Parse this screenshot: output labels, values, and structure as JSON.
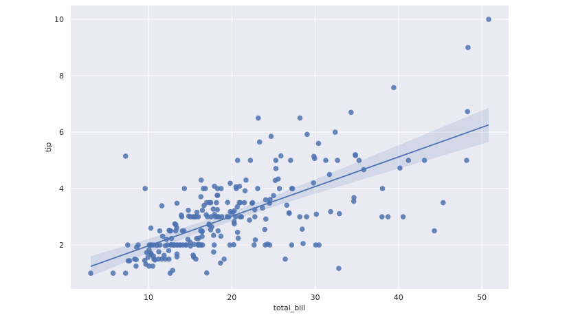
{
  "chart_data": {
    "type": "scatter",
    "title": "",
    "xlabel": "total_bill",
    "ylabel": "tip",
    "xlim": [
      0.68,
      53.2
    ],
    "ylim": [
      0.44,
      10.49
    ],
    "xticks": [
      10,
      20,
      30,
      40,
      50
    ],
    "yticks": [
      2,
      4,
      6,
      8,
      10
    ],
    "grid": true,
    "regression": {
      "fit": "linear",
      "confidence_interval": 95
    },
    "colors": {
      "background": "#eaeaf2",
      "grid": "#ffffff",
      "points": "#4c72b0",
      "line": "#4c72b0"
    },
    "x": [
      16.99,
      10.34,
      21.01,
      23.68,
      24.59,
      25.29,
      8.77,
      26.88,
      15.04,
      14.78,
      10.27,
      35.26,
      15.42,
      18.43,
      14.83,
      21.58,
      10.33,
      16.29,
      16.97,
      20.65,
      17.92,
      20.29,
      15.77,
      39.42,
      19.82,
      17.81,
      13.37,
      12.69,
      21.7,
      19.65,
      9.55,
      18.35,
      15.06,
      20.69,
      17.78,
      24.06,
      16.31,
      16.93,
      18.69,
      31.27,
      16.04,
      17.46,
      13.94,
      9.68,
      30.4,
      18.29,
      22.23,
      32.4,
      28.55,
      18.04,
      12.54,
      10.29,
      34.81,
      9.94,
      25.56,
      19.49,
      38.01,
      26.41,
      11.24,
      48.27,
      20.29,
      13.81,
      11.02,
      18.29,
      17.59,
      20.08,
      16.45,
      3.07,
      20.23,
      15.01,
      12.02,
      17.07,
      26.86,
      25.28,
      14.73,
      10.51,
      17.92,
      27.2,
      22.76,
      17.29,
      19.44,
      16.66,
      10.07,
      32.68,
      15.98,
      34.83,
      13.03,
      18.28,
      24.71,
      21.16,
      28.97,
      22.49,
      5.75,
      16.32,
      22.75,
      40.17,
      27.28,
      12.03,
      21.01,
      12.46,
      11.35,
      15.38,
      44.3,
      22.42,
      20.92,
      15.36,
      20.49,
      25.21,
      18.24,
      14.31,
      14.0,
      7.25,
      38.07,
      23.95,
      25.71,
      17.31,
      29.93,
      10.65,
      12.43,
      24.08,
      11.69,
      13.42,
      14.26,
      15.95,
      12.48,
      29.8,
      8.52,
      14.52,
      11.38,
      22.82,
      19.08,
      20.27,
      11.17,
      12.26,
      18.26,
      8.51,
      10.33,
      14.15,
      16.0,
      13.16,
      17.47,
      34.3,
      41.19,
      27.05,
      16.43,
      8.35,
      18.64,
      11.87,
      9.78,
      7.51,
      14.07,
      13.13,
      17.26,
      24.55,
      19.77,
      29.85,
      48.17,
      25.0,
      13.39,
      16.49,
      21.5,
      12.66,
      16.21,
      13.81,
      17.51,
      24.52,
      20.76,
      31.71,
      10.59,
      10.63,
      50.81,
      15.81,
      7.25,
      31.85,
      16.82,
      32.9,
      17.89,
      14.48,
      9.6,
      34.63,
      34.65,
      23.33,
      45.35,
      23.17,
      40.55,
      20.69,
      20.9,
      30.46,
      18.15,
      23.1,
      15.69,
      19.81,
      28.44,
      15.48,
      16.58,
      7.56,
      10.34,
      43.11,
      13.0,
      13.51,
      18.71,
      12.74,
      13.0,
      16.4,
      20.53,
      16.47,
      26.59,
      38.73,
      24.27,
      12.76,
      30.06,
      25.89,
      48.33,
      13.27,
      28.17,
      12.9,
      28.15,
      11.59,
      7.74,
      30.14,
      12.16,
      13.42,
      8.58,
      15.98,
      13.42,
      16.27,
      10.09,
      20.45,
      13.28,
      22.12,
      24.01,
      15.69,
      11.61,
      10.77,
      15.53,
      10.07,
      12.6,
      32.83,
      35.83,
      29.03,
      27.18,
      22.67,
      17.82,
      18.78
    ],
    "y": [
      1.01,
      1.66,
      3.5,
      3.31,
      3.61,
      4.71,
      2.0,
      3.12,
      1.96,
      3.23,
      1.71,
      5.0,
      1.57,
      3.0,
      3.02,
      3.92,
      1.67,
      3.71,
      3.5,
      3.35,
      4.08,
      2.75,
      2.23,
      7.58,
      3.18,
      2.34,
      2.0,
      2.0,
      4.3,
      3.0,
      1.45,
      2.5,
      3.0,
      2.45,
      3.27,
      3.6,
      2.0,
      3.07,
      2.31,
      5.0,
      2.24,
      2.54,
      3.06,
      1.32,
      5.6,
      3.0,
      5.0,
      6.0,
      2.05,
      3.0,
      2.5,
      2.6,
      5.2,
      1.56,
      4.34,
      3.51,
      3.0,
      1.5,
      1.76,
      6.73,
      3.21,
      2.0,
      1.98,
      3.76,
      2.64,
      3.15,
      2.47,
      1.0,
      2.01,
      2.09,
      1.97,
      3.0,
      3.14,
      5.0,
      2.2,
      1.25,
      3.08,
      4.0,
      3.0,
      2.71,
      3.0,
      3.4,
      1.83,
      5.0,
      2.03,
      5.17,
      2.0,
      4.0,
      5.85,
      3.0,
      3.0,
      3.5,
      1.0,
      4.3,
      3.25,
      4.73,
      4.0,
      1.5,
      3.0,
      1.5,
      2.5,
      3.0,
      2.5,
      3.48,
      4.08,
      1.64,
      4.06,
      4.29,
      3.76,
      4.0,
      3.0,
      1.0,
      4.0,
      2.55,
      4.0,
      3.5,
      5.07,
      1.5,
      1.8,
      2.92,
      2.31,
      1.68,
      2.5,
      2.0,
      2.52,
      4.2,
      1.48,
      2.0,
      2.0,
      2.18,
      1.5,
      2.83,
      1.5,
      2.0,
      3.25,
      1.25,
      2.0,
      2.0,
      2.0,
      2.75,
      3.5,
      6.7,
      5.0,
      5.0,
      2.3,
      1.5,
      1.36,
      1.63,
      1.73,
      2.0,
      2.5,
      2.0,
      2.74,
      2.0,
      2.0,
      5.14,
      5.0,
      3.75,
      2.61,
      2.0,
      3.5,
      2.5,
      2.0,
      2.0,
      3.0,
      3.48,
      2.24,
      4.5,
      1.61,
      2.0,
      10.0,
      3.16,
      5.15,
      3.18,
      4.0,
      3.11,
      2.0,
      2.0,
      4.0,
      3.55,
      3.68,
      5.65,
      3.5,
      6.5,
      3.0,
      5.0,
      3.5,
      2.0,
      3.5,
      4.0,
      1.5,
      4.19,
      2.56,
      2.02,
      4.0,
      1.44,
      2.0,
      5.0,
      2.0,
      2.0,
      4.0,
      2.01,
      2.0,
      2.5,
      4.0,
      3.23,
      3.41,
      3.0,
      2.03,
      2.23,
      2.0,
      5.16,
      9.0,
      2.5,
      6.5,
      1.1,
      3.0,
      1.5,
      1.44,
      3.09,
      2.2,
      3.48,
      1.92,
      3.0,
      1.58,
      2.5,
      2.0,
      3.0,
      2.72,
      2.88,
      2.0,
      3.0,
      3.39,
      1.47,
      3.0,
      1.25,
      1.0,
      1.17,
      4.67,
      5.92,
      2.0,
      2.0,
      1.75,
      3.0
    ]
  }
}
